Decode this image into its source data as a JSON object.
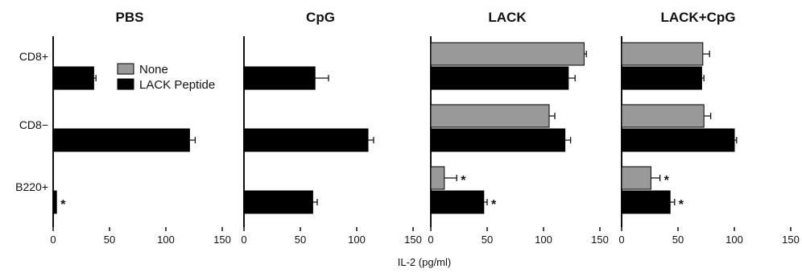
{
  "chart_data": {
    "type": "bar",
    "orientation": "horizontal",
    "xlabel": "IL-2 (pg/ml)",
    "xlim": [
      0,
      150
    ],
    "xticks": [
      "0",
      "50",
      "100",
      "150"
    ],
    "categories": [
      "CD8+",
      "CD8−",
      "B220+"
    ],
    "legend": {
      "placement": "top-left of first panel",
      "entries": [
        {
          "name": "None",
          "color": "#999999"
        },
        {
          "name": "LACK Peptide",
          "color": "#000000"
        }
      ]
    },
    "significance_marker": "*",
    "panels": [
      {
        "title": "PBS",
        "series": [
          {
            "name": "None",
            "values": [
              0,
              0,
              0
            ],
            "errors": [
              0,
              0,
              0
            ],
            "sig": [
              false,
              false,
              false
            ]
          },
          {
            "name": "LACK Peptide",
            "values": [
              36,
              121,
              3
            ],
            "errors": [
              2,
              5,
              0
            ],
            "sig": [
              false,
              false,
              true
            ]
          }
        ]
      },
      {
        "title": "CpG",
        "series": [
          {
            "name": "None",
            "values": [
              0,
              0,
              0
            ],
            "errors": [
              0,
              0,
              0
            ],
            "sig": [
              false,
              false,
              false
            ]
          },
          {
            "name": "LACK Peptide",
            "values": [
              63,
              110,
              61
            ],
            "errors": [
              12,
              5,
              4
            ],
            "sig": [
              false,
              false,
              false
            ]
          }
        ]
      },
      {
        "title": "LACK",
        "series": [
          {
            "name": "None",
            "values": [
              136,
              105,
              12
            ],
            "errors": [
              2,
              5,
              11
            ],
            "sig": [
              false,
              false,
              true
            ]
          },
          {
            "name": "LACK Peptide",
            "values": [
              122,
              119,
              47
            ],
            "errors": [
              6,
              5,
              3
            ],
            "sig": [
              false,
              false,
              true
            ]
          }
        ]
      },
      {
        "title": "LACK+CpG",
        "series": [
          {
            "name": "None",
            "values": [
              72,
              73,
              26
            ],
            "errors": [
              6,
              6,
              8
            ],
            "sig": [
              false,
              false,
              true
            ]
          },
          {
            "name": "LACK Peptide",
            "values": [
              71,
              100,
              43
            ],
            "errors": [
              2,
              2,
              4
            ],
            "sig": [
              false,
              false,
              true
            ]
          }
        ]
      }
    ]
  }
}
